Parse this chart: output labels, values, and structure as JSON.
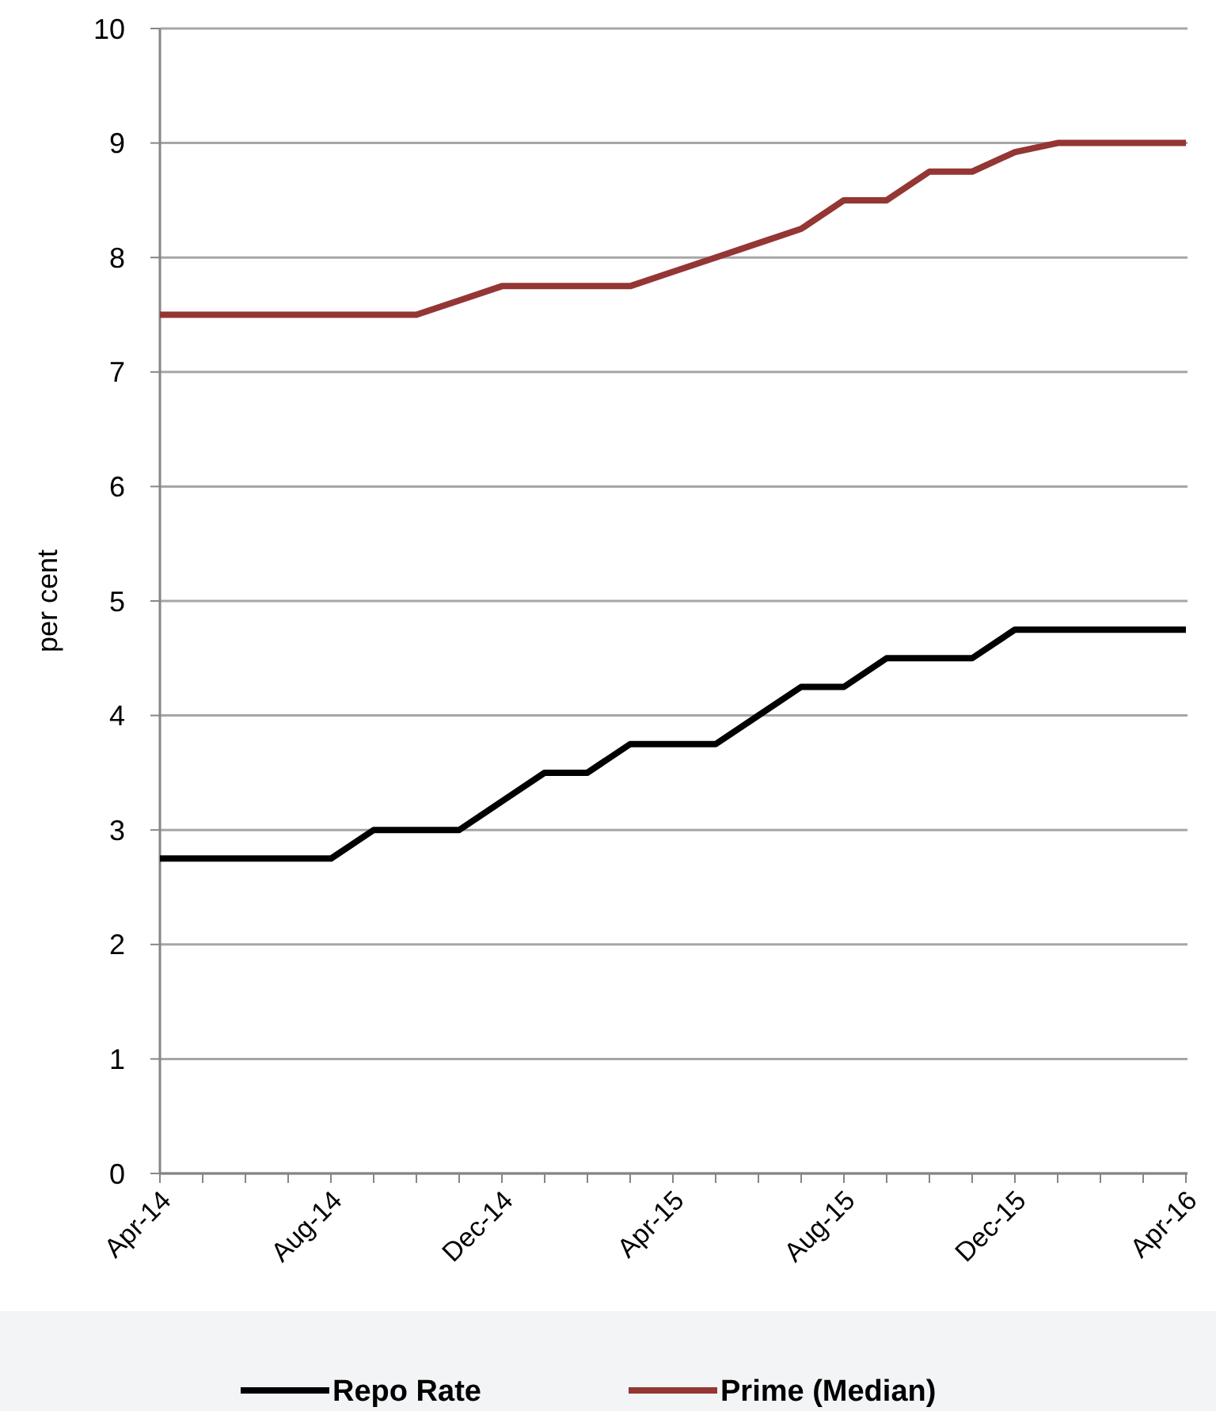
{
  "chart_data": {
    "type": "line",
    "ylabel": "per cent",
    "categories": [
      "Apr-14",
      null,
      null,
      null,
      "Aug-14",
      null,
      null,
      null,
      "Dec-14",
      null,
      null,
      null,
      "Apr-15",
      null,
      null,
      null,
      "Aug-15",
      null,
      null,
      null,
      "Dec-15",
      null,
      null,
      null,
      "Apr-16"
    ],
    "series": [
      {
        "name": "Repo Rate",
        "color": "#000000",
        "values": [
          2.75,
          2.75,
          2.75,
          2.75,
          2.75,
          3,
          3,
          3,
          3.25,
          3.5,
          3.5,
          3.75,
          3.75,
          3.75,
          4,
          4.25,
          4.25,
          4.5,
          4.5,
          4.5,
          4.75,
          4.75,
          4.75,
          4.75,
          4.75
        ]
      },
      {
        "name": "Prime (Median)",
        "color": "#943634",
        "values": [
          7.5,
          7.5,
          7.5,
          7.5,
          7.5,
          7.5,
          7.5,
          7.625,
          7.75,
          7.75,
          7.75,
          7.75,
          7.875,
          8,
          8.125,
          8.25,
          8.5,
          8.5,
          8.75,
          8.75,
          8.92,
          9,
          9,
          9,
          9
        ]
      }
    ],
    "ylim": [
      0,
      10
    ],
    "yticks": [
      0,
      1,
      2,
      3,
      4,
      5,
      6,
      7,
      8,
      9,
      10
    ],
    "grid": "y",
    "legend": "bottom",
    "marker": "none",
    "line_style": "solid"
  }
}
